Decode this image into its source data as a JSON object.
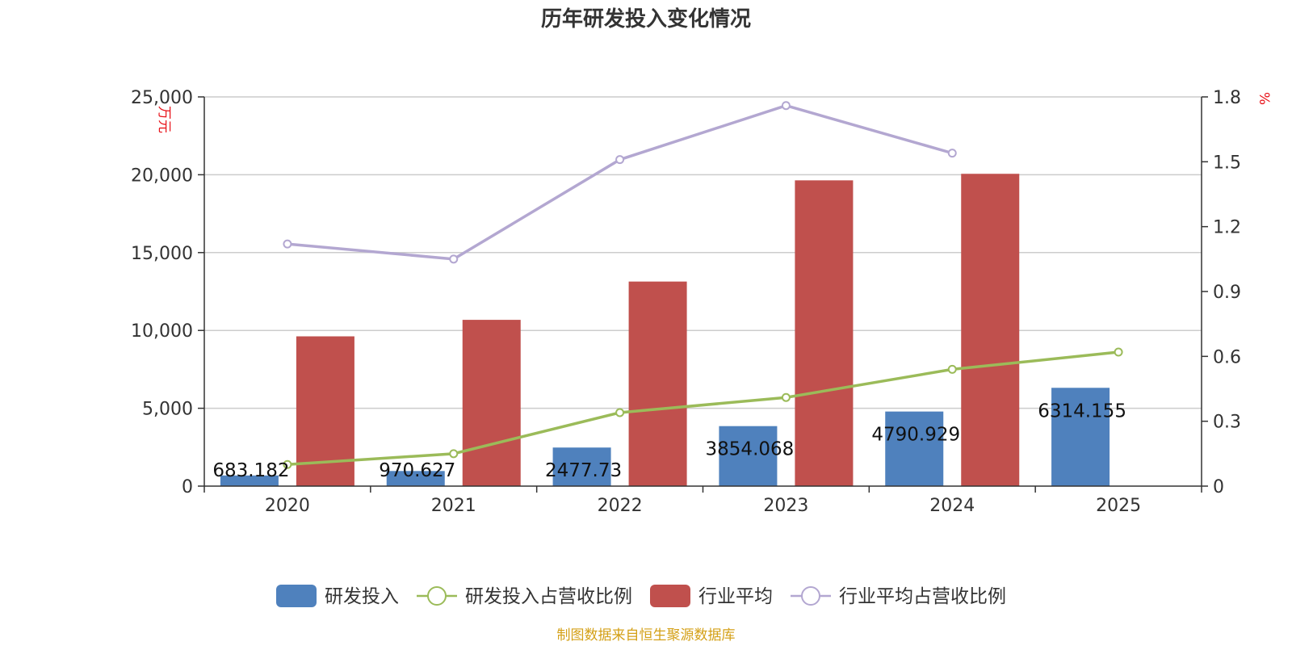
{
  "chart_data": {
    "type": "bar",
    "title": "历年研发投入变化情况",
    "categories": [
      "2020",
      "2021",
      "2022",
      "2023",
      "2024",
      "2025"
    ],
    "y_left": {
      "unit": "万元",
      "ticks": [
        0,
        5000,
        10000,
        15000,
        20000,
        25000
      ],
      "tick_labels": [
        "0",
        "5,000",
        "10,000",
        "15,000",
        "20,000",
        "25,000"
      ],
      "ylim": [
        0,
        25000
      ]
    },
    "y_right": {
      "unit": "%",
      "ticks": [
        0,
        0.3,
        0.6,
        0.9,
        1.2,
        1.5,
        1.8
      ],
      "tick_labels": [
        "0",
        "0.3",
        "0.6",
        "0.9",
        "1.2",
        "1.5",
        "1.8"
      ],
      "ylim": [
        0,
        1.8
      ]
    },
    "series": [
      {
        "name": "研发投入",
        "type": "bar",
        "axis": "left",
        "color": "#4f81bd",
        "values": [
          683.182,
          970.627,
          2477.73,
          3854.068,
          4790.929,
          6314.155
        ],
        "labels": [
          "683.182",
          "970.627",
          "2477.73",
          "3854.068",
          "4790.929",
          "6314.155"
        ]
      },
      {
        "name": "研发投入占营收比例",
        "type": "line",
        "axis": "right",
        "color": "#9bbb59",
        "values": [
          0.1,
          0.15,
          0.34,
          0.41,
          0.54,
          0.62
        ]
      },
      {
        "name": "行业平均",
        "type": "bar",
        "axis": "left",
        "color": "#c0504d",
        "values": [
          9620,
          10680,
          13140,
          19640,
          20060,
          null
        ]
      },
      {
        "name": "行业平均占营收比例",
        "type": "line",
        "axis": "right",
        "color": "#b3a7d1",
        "values": [
          1.12,
          1.05,
          1.51,
          1.76,
          1.54,
          null
        ]
      }
    ],
    "grid": true,
    "legend_position": "bottom"
  },
  "source_note": "制图数据来自恒生聚源数据库",
  "colors": {
    "left_unit": "#e8141b",
    "right_unit": "#e8141b",
    "source": "#d4a017",
    "grid": "#cccccc",
    "axis": "#333333"
  }
}
